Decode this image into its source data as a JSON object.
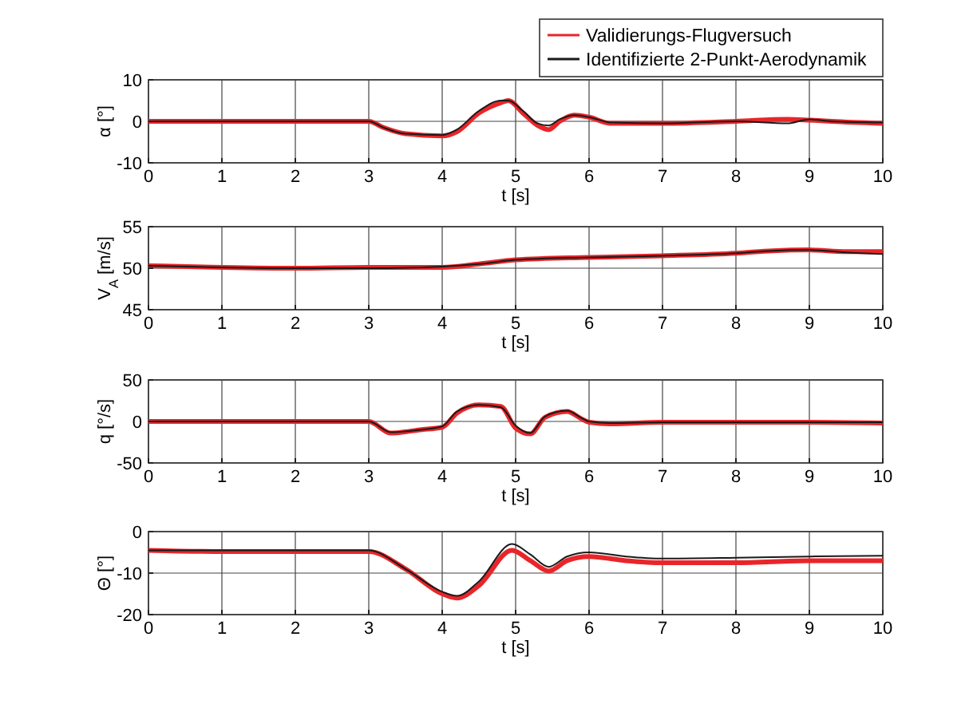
{
  "chart_data": [
    {
      "type": "line",
      "ylabel": "α [°]",
      "xlabel": "t [s]",
      "xlim": [
        0,
        10
      ],
      "xticks": [
        0,
        1,
        2,
        3,
        4,
        5,
        6,
        7,
        8,
        9,
        10
      ],
      "ylim": [
        -10,
        10
      ],
      "yticks": [
        -10,
        0,
        10
      ],
      "grid": true,
      "legend": "top right",
      "x": [
        0,
        1,
        2,
        3,
        3.2,
        3.5,
        4,
        4.2,
        4.5,
        4.8,
        4.9,
        5.1,
        5.3,
        5.45,
        5.6,
        5.8,
        6,
        6.3,
        7,
        8,
        8.7,
        9,
        9.3,
        10
      ],
      "series": [
        {
          "name": "Validierungs-Flugversuch",
          "color": "#e8262a",
          "values": [
            0,
            0,
            0,
            0,
            -1.5,
            -3,
            -3.5,
            -2.5,
            2,
            4.5,
            5,
            2,
            -1,
            -2,
            0,
            1.5,
            1,
            -0.5,
            -0.5,
            0,
            0.5,
            0.3,
            0,
            -0.5
          ]
        },
        {
          "name": "Identifizierte 2-Punkt-Aerodynamik",
          "color": "#1a1a1a",
          "values": [
            0,
            0,
            0,
            0,
            -1.5,
            -3,
            -3.3,
            -2,
            2.5,
            5,
            5,
            2.5,
            -0.5,
            -1,
            0.5,
            1.5,
            1,
            -0.3,
            -0.5,
            0,
            -0.5,
            0.5,
            0,
            -0.3
          ]
        }
      ]
    },
    {
      "type": "line",
      "ylabel": "V$_{A}$ [m/s]",
      "xlabel": "t [s]",
      "xlim": [
        0,
        10
      ],
      "xticks": [
        0,
        1,
        2,
        3,
        4,
        5,
        6,
        7,
        8,
        9,
        10
      ],
      "ylim": [
        45,
        55
      ],
      "yticks": [
        45,
        50,
        55
      ],
      "grid": true,
      "x": [
        0,
        1,
        2,
        3,
        4,
        4.5,
        5,
        6,
        7,
        8,
        8.5,
        9,
        9.5,
        10
      ],
      "series": [
        {
          "color": "#e8262a",
          "values": [
            50.3,
            50.1,
            50,
            50.1,
            50.1,
            50.5,
            51,
            51.3,
            51.5,
            51.8,
            52.1,
            52.2,
            52.0,
            52.0
          ]
        },
        {
          "color": "#1a1a1a",
          "values": [
            50.3,
            50.1,
            50,
            50,
            50.2,
            50.5,
            51,
            51.3,
            51.5,
            51.8,
            52.1,
            52.2,
            51.9,
            51.7
          ]
        }
      ]
    },
    {
      "type": "line",
      "ylabel": "q [°/s]",
      "xlabel": "t [s]",
      "xlim": [
        0,
        10
      ],
      "xticks": [
        0,
        1,
        2,
        3,
        4,
        5,
        6,
        7,
        8,
        9,
        10
      ],
      "ylim": [
        -50,
        50
      ],
      "yticks": [
        -50,
        0,
        50
      ],
      "grid": true,
      "x": [
        0,
        1,
        2,
        3,
        3.3,
        3.7,
        4,
        4.2,
        4.5,
        4.8,
        5,
        5.2,
        5.4,
        5.7,
        5.9,
        6,
        6.3,
        7,
        8,
        9,
        10
      ],
      "series": [
        {
          "color": "#e8262a",
          "values": [
            0,
            0,
            0,
            0,
            -14,
            -10,
            -7,
            10,
            20,
            18,
            -8,
            -15,
            5,
            12,
            3,
            -1,
            -3,
            -1,
            -1,
            -1,
            -2
          ]
        },
        {
          "color": "#1a1a1a",
          "values": [
            0,
            0,
            0,
            0,
            -13,
            -10,
            -6,
            12,
            20,
            17,
            -5,
            -14,
            6,
            13,
            4,
            0,
            -2,
            -1,
            -1,
            -1,
            -1
          ]
        }
      ]
    },
    {
      "type": "line",
      "ylabel": "Θ [°]",
      "xlabel": "t [s]",
      "xlim": [
        0,
        10
      ],
      "xticks": [
        0,
        1,
        2,
        3,
        4,
        5,
        6,
        7,
        8,
        9,
        10
      ],
      "ylim": [
        -20,
        0
      ],
      "yticks": [
        -20,
        -10,
        0
      ],
      "grid": true,
      "x": [
        0,
        1,
        2,
        3,
        3.5,
        4,
        4.2,
        4.5,
        4.95,
        5.2,
        5.45,
        5.7,
        6,
        6.5,
        7,
        8,
        9,
        10
      ],
      "series": [
        {
          "color": "#e8262a",
          "values": [
            -4.5,
            -4.8,
            -4.8,
            -4.8,
            -9,
            -15,
            -16,
            -13,
            -4.5,
            -7,
            -9.5,
            -7,
            -6,
            -7,
            -7.5,
            -7.5,
            -7,
            -7
          ]
        },
        {
          "color": "#1a1a1a",
          "values": [
            -4.5,
            -4.5,
            -4.5,
            -4.5,
            -9,
            -14.5,
            -15.5,
            -12,
            -3,
            -5.5,
            -8.5,
            -6,
            -5,
            -6,
            -6.5,
            -6.3,
            -6,
            -5.8
          ]
        }
      ]
    }
  ]
}
